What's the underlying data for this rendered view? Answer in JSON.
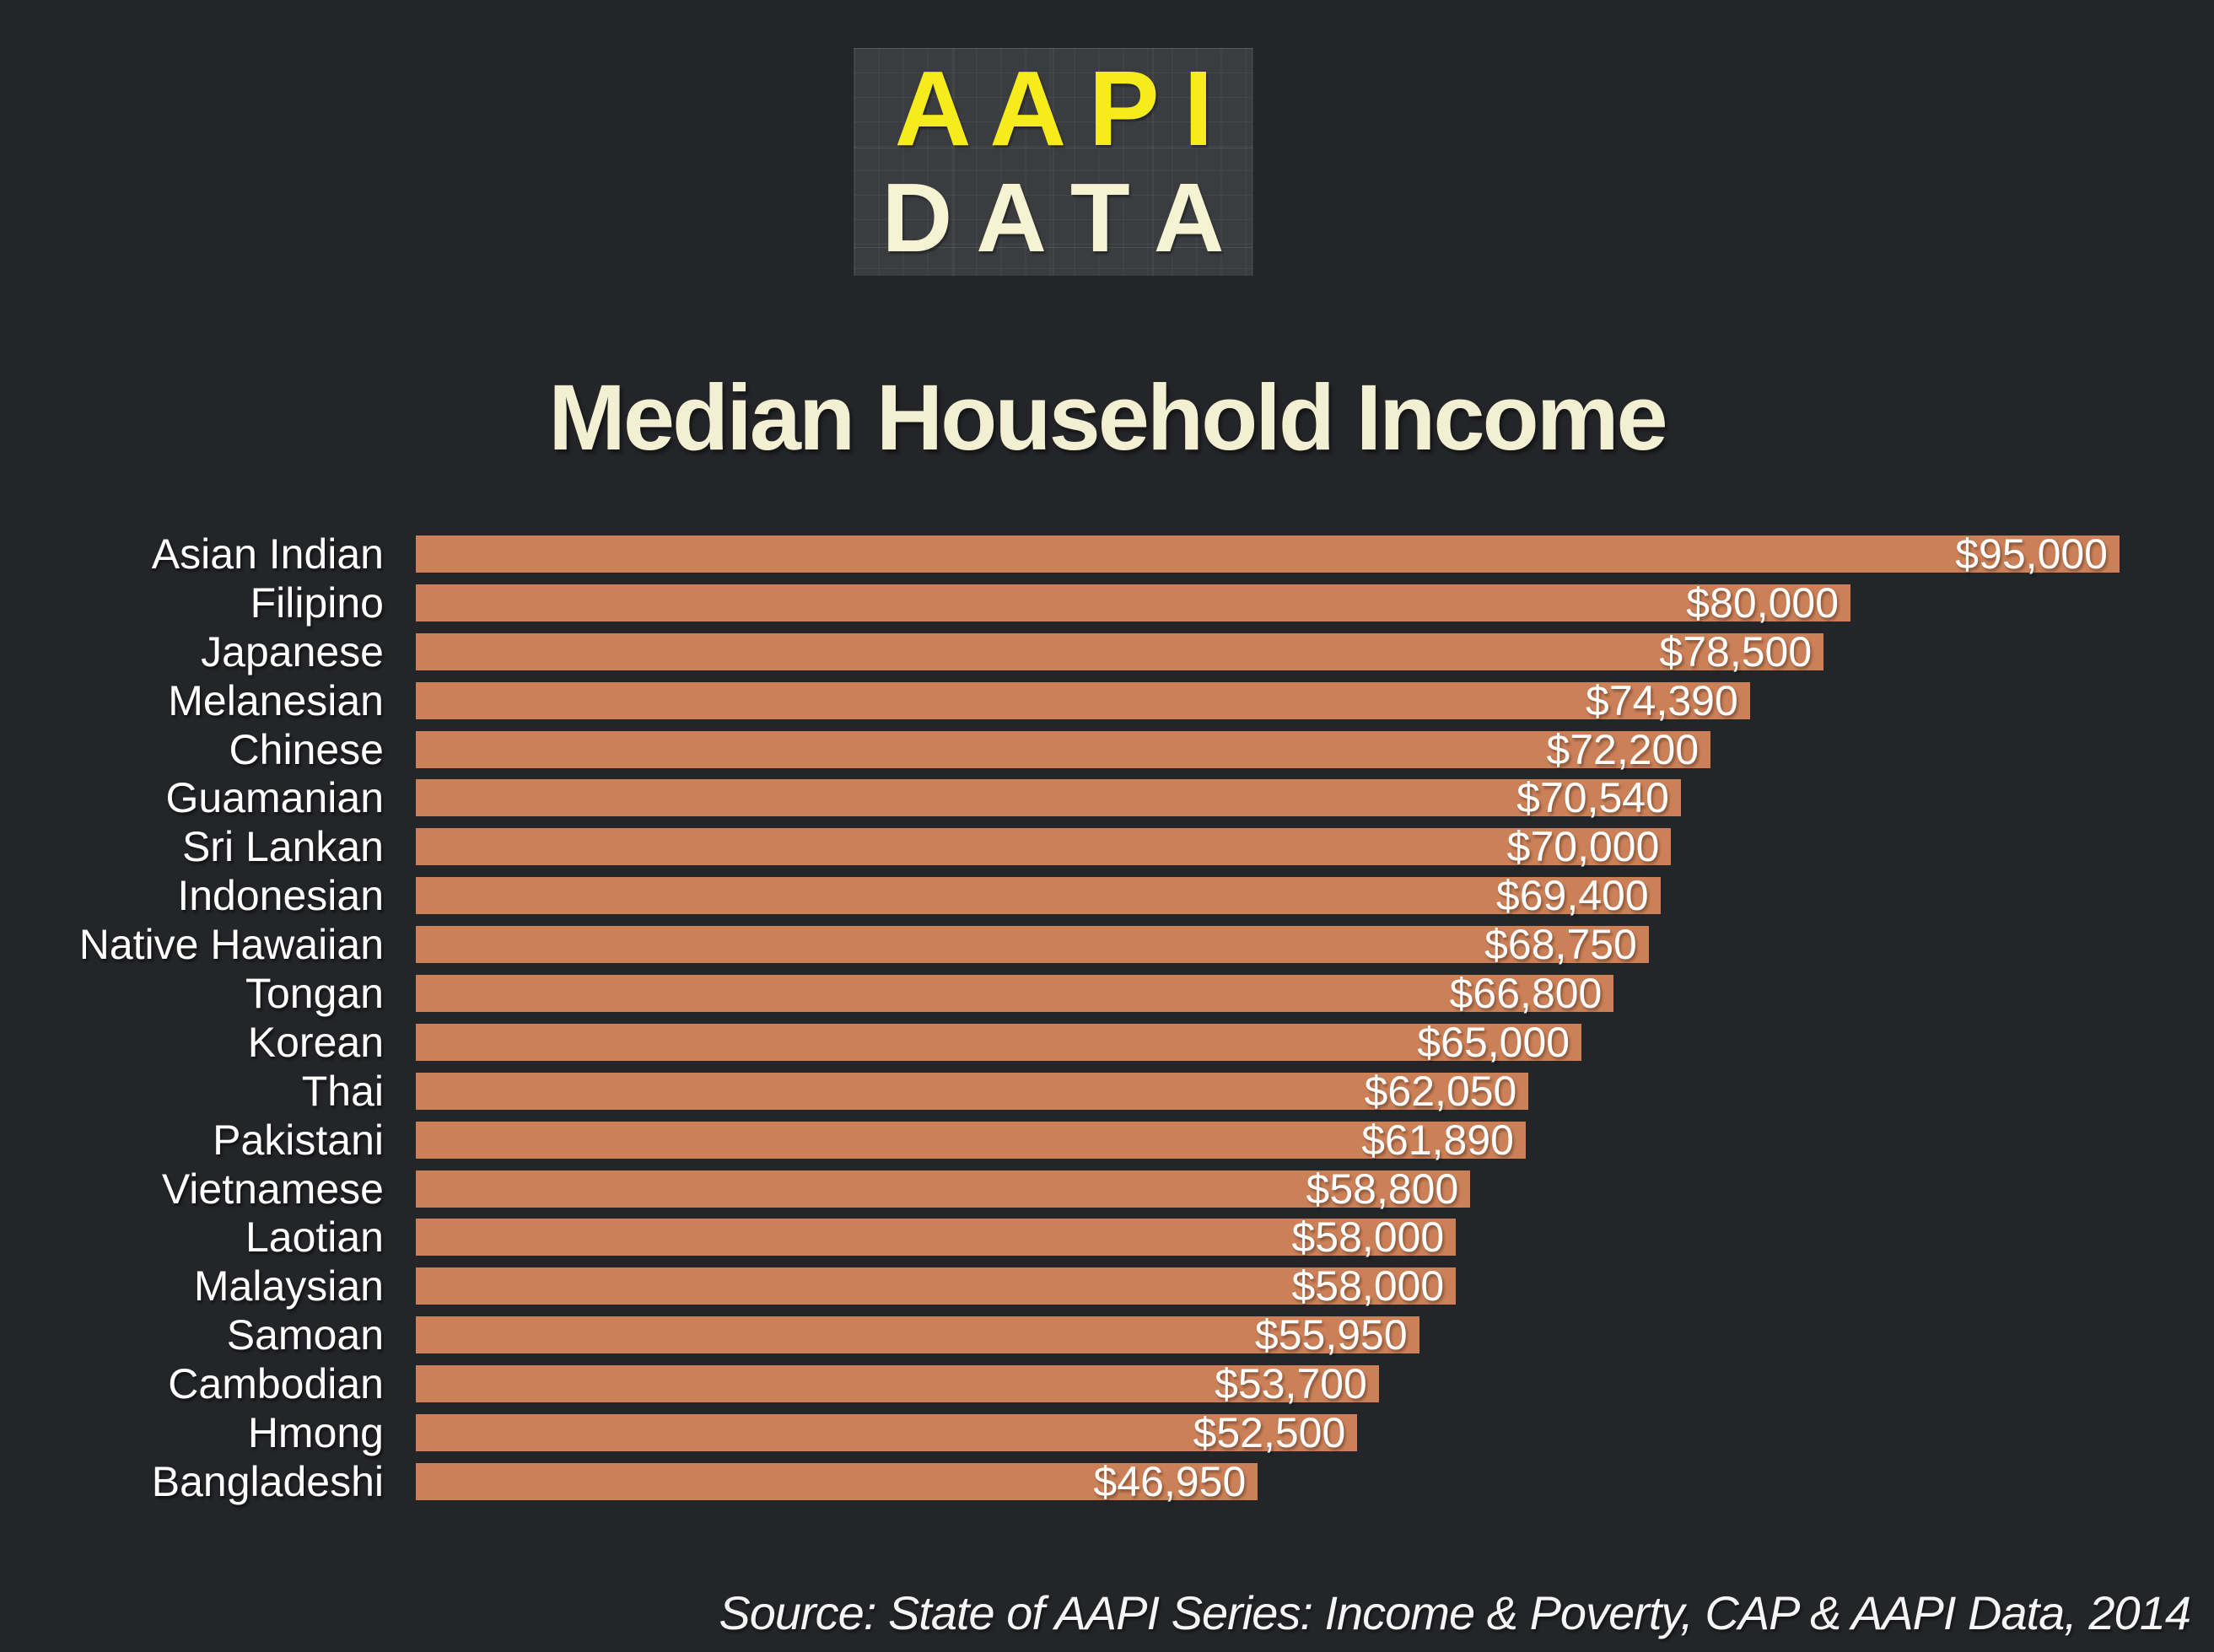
{
  "logo": {
    "line1": "A A P I",
    "line2": "D A T A"
  },
  "chart_data": {
    "type": "bar",
    "orientation": "horizontal",
    "title": "Median Household Income",
    "xlabel": "",
    "ylabel": "",
    "xlim": [
      0,
      95000
    ],
    "grid": false,
    "legend": false,
    "categories": [
      "Asian Indian",
      "Filipino",
      "Japanese",
      "Melanesian",
      "Chinese",
      "Guamanian",
      "Sri Lankan",
      "Indonesian",
      "Native Hawaiian",
      "Tongan",
      "Korean",
      "Thai",
      "Pakistani",
      "Vietnamese",
      "Laotian",
      "Malaysian",
      "Samoan",
      "Cambodian",
      "Hmong",
      "Bangladeshi"
    ],
    "values": [
      95000,
      80000,
      78500,
      74390,
      72200,
      70540,
      70000,
      69400,
      68750,
      66800,
      65000,
      62050,
      61890,
      58800,
      58000,
      58000,
      55950,
      53700,
      52500,
      46950
    ],
    "value_labels": [
      "$95,000",
      "$80,000",
      "$78,500",
      "$74,390",
      "$72,200",
      "$70,540",
      "$70,000",
      "$69,400",
      "$68,750",
      "$66,800",
      "$65,000",
      "$62,050",
      "$61,890",
      "$58,800",
      "$58,000",
      "$58,000",
      "$55,950",
      "$53,700",
      "$52,500",
      "$46,950"
    ],
    "bar_color": "#cc8057",
    "background_color": "#242528",
    "category_label_color": "#ffffff",
    "value_label_color": "#fefefe",
    "title_color": "#f3efd3"
  },
  "source": "Source: State of AAPI Series: Income & Poverty, CAP & AAPI Data, 2014",
  "colors": {
    "logo_yellow": "#f6ec1b",
    "logo_cream": "#f6f3d2",
    "logo_background": "#3a3c3f"
  }
}
